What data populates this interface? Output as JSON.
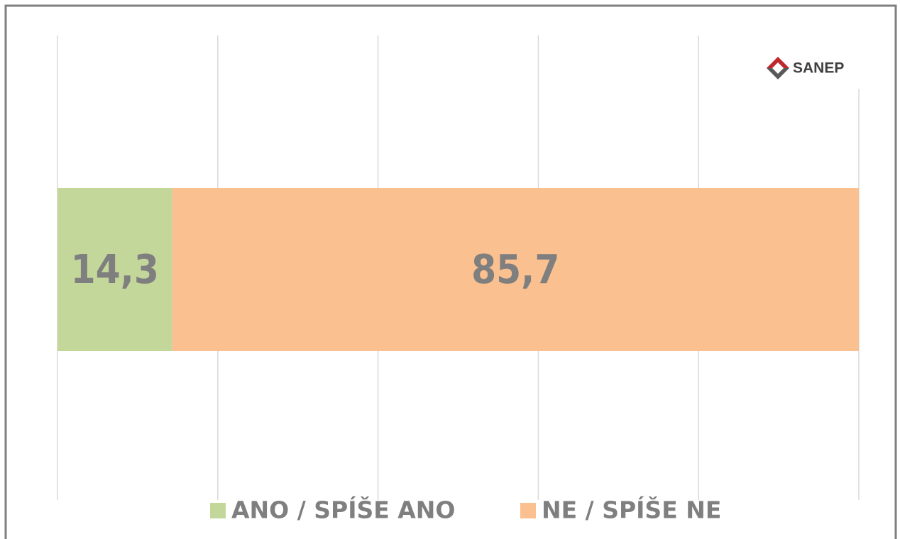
{
  "logo": "SANEP",
  "chart_data": {
    "type": "stacked_hbar",
    "xlim": [
      0,
      100
    ],
    "xticks": [
      0,
      20,
      40,
      60,
      80,
      100
    ],
    "grid": true,
    "legend": "bottom",
    "series": [
      {
        "name": "ANO / SPÍŠE ANO",
        "color": "#c4d79b",
        "values": [
          14.3
        ],
        "value_labels": [
          "14,3"
        ]
      },
      {
        "name": "NE / SPÍŠE NE",
        "color": "#fac090",
        "values": [
          85.7
        ],
        "value_labels": [
          "85,7"
        ]
      }
    ]
  }
}
